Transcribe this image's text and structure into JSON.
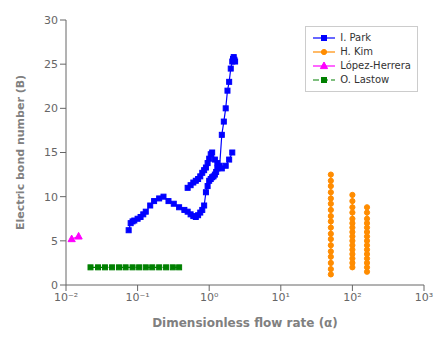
{
  "chart_data": {
    "type": "line",
    "xlabel": "Dimensionless flow rate (α)",
    "ylabel": "Electric bond number (B)",
    "log": "x",
    "grid": false,
    "legend": "upper right",
    "xlim": [
      0.01,
      1000
    ],
    "xticks": [
      {
        "value": 0.01,
        "label": "10⁻²"
      },
      {
        "value": 0.1,
        "label": "10⁻¹"
      },
      {
        "value": 1,
        "label": "10⁰"
      },
      {
        "value": 10,
        "label": "10¹"
      },
      {
        "value": 100,
        "label": "10²"
      },
      {
        "value": 1000,
        "label": "10³"
      }
    ],
    "ylim": [
      0,
      30
    ],
    "yticks": [
      0,
      5,
      10,
      15,
      20,
      25,
      30
    ],
    "series": [
      {
        "name": "I. Park",
        "color": "#0000FF",
        "marker": "square",
        "line_style": "solid",
        "x": [
          0.075,
          0.08,
          0.085,
          0.09,
          0.1,
          0.11,
          0.12,
          0.13,
          0.15,
          0.17,
          0.2,
          0.23,
          0.27,
          0.32,
          0.38,
          0.45,
          0.5,
          0.55,
          0.6,
          0.65,
          0.7,
          0.75,
          0.8,
          0.85,
          0.9,
          0.95,
          1.0,
          1.05,
          1.1,
          1.15,
          1.2,
          1.25,
          1.3,
          1.4,
          1.5,
          1.6,
          1.7,
          1.8,
          1.9,
          2.0,
          2.1,
          2.15,
          2.2,
          2.25,
          2.3
        ],
        "values": [
          6.2,
          7.0,
          7.2,
          7.3,
          7.5,
          7.7,
          8.0,
          8.3,
          9.0,
          9.5,
          9.8,
          10.0,
          9.5,
          9.2,
          8.8,
          8.5,
          8.3,
          8.0,
          7.8,
          7.7,
          7.9,
          8.2,
          8.5,
          9.0,
          10.5,
          11.2,
          11.8,
          12.0,
          12.2,
          12.3,
          12.5,
          12.8,
          13.2,
          13.5,
          17.0,
          18.5,
          20.0,
          22.0,
          23.0,
          24.5,
          25.3,
          25.6,
          25.8,
          25.5,
          25.3
        ]
      },
      {
        "name": "I. Park",
        "color": "#0000FF",
        "marker": "square",
        "line_style": "solid",
        "x": [
          0.5,
          0.55,
          0.6,
          0.65,
          0.7,
          0.75,
          0.8,
          0.85,
          0.9,
          0.95,
          1.0,
          1.05,
          1.1,
          1.2,
          1.3,
          1.5,
          1.7,
          1.9,
          2.1
        ],
        "values": [
          11.0,
          11.3,
          11.6,
          11.8,
          12.0,
          12.3,
          12.7,
          13.0,
          13.3,
          13.8,
          14.3,
          14.8,
          15.0,
          14.2,
          13.8,
          13.2,
          13.5,
          14.2,
          15.0
        ]
      },
      {
        "name": "H. Kim",
        "color": "#FF8C00",
        "marker": "circle",
        "line_style": "solid",
        "x": [
          50,
          50,
          50,
          50,
          50,
          50,
          50,
          50,
          50,
          50,
          50,
          50,
          50,
          50,
          50,
          50,
          50,
          50
        ],
        "values": [
          12.5,
          11.8,
          11.2,
          10.5,
          9.8,
          9.2,
          8.5,
          7.8,
          7.2,
          6.5,
          5.8,
          5.2,
          4.5,
          3.8,
          3.2,
          2.5,
          1.8,
          1.2
        ]
      },
      {
        "name": "H. Kim",
        "color": "#FF8C00",
        "marker": "circle",
        "line_style": "solid",
        "x": [
          100,
          100,
          100,
          100,
          100,
          100,
          100,
          100,
          100,
          100,
          100,
          100,
          100,
          100,
          100,
          100
        ],
        "values": [
          10.2,
          9.5,
          8.8,
          8.2,
          7.5,
          7.0,
          6.5,
          6.0,
          5.5,
          5.0,
          4.5,
          4.0,
          3.5,
          3.0,
          2.5,
          2.0
        ]
      },
      {
        "name": "H. Kim",
        "color": "#FF8C00",
        "marker": "circle",
        "line_style": "solid",
        "x": [
          160,
          160,
          160,
          160,
          160,
          160,
          160,
          160,
          160,
          160,
          160,
          160,
          160,
          160,
          160
        ],
        "values": [
          8.8,
          8.2,
          7.5,
          7.0,
          6.5,
          6.0,
          5.5,
          5.0,
          4.5,
          4.0,
          3.5,
          3.0,
          2.5,
          2.0,
          1.5
        ]
      },
      {
        "name": "López-Herrera",
        "color": "#FF00FF",
        "marker": "triangle",
        "line_style": "solid",
        "x": [
          0.012,
          0.015
        ],
        "values": [
          5.2,
          5.5
        ]
      },
      {
        "name": "O. Lastow",
        "color": "#008000",
        "marker": "square",
        "line_style": "dashed",
        "x": [
          0.022,
          0.028,
          0.035,
          0.044,
          0.055,
          0.068,
          0.085,
          0.105,
          0.13,
          0.16,
          0.2,
          0.25,
          0.31,
          0.38
        ],
        "values": [
          2.0,
          2.0,
          2.0,
          2.0,
          2.0,
          2.0,
          2.0,
          2.0,
          2.0,
          2.0,
          2.0,
          2.0,
          2.0,
          2.0
        ]
      }
    ]
  }
}
